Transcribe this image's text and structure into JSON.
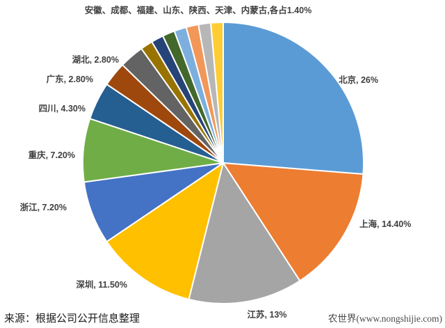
{
  "chart_data": {
    "type": "pie",
    "title": "",
    "annotation": "安徽、成都、福建、山东、陕西、天津、内蒙古,各占1.40%",
    "annotation_each_value": 1.4,
    "legend": "none",
    "data_labels": "outside",
    "start_angle_deg": 0,
    "direction": "clockwise",
    "border_color": "#ffffff",
    "slices": [
      {
        "name": "北京",
        "value": 26.0,
        "label": "北京, 26%",
        "color": "#5B9BD5"
      },
      {
        "name": "上海",
        "value": 14.4,
        "label": "上海, 14.40%",
        "color": "#ED7D31"
      },
      {
        "name": "江苏",
        "value": 13.0,
        "label": "江苏, 13%",
        "color": "#A5A5A5"
      },
      {
        "name": "深圳",
        "value": 11.5,
        "label": "深圳, 11.50%",
        "color": "#FFC000"
      },
      {
        "name": "浙江",
        "value": 7.2,
        "label": "浙江, 7.20%",
        "color": "#4472C4"
      },
      {
        "name": "重庆",
        "value": 7.2,
        "label": "重庆, 7.20%",
        "color": "#70AD47"
      },
      {
        "name": "四川",
        "value": 4.3,
        "label": "四川, 4.30%",
        "color": "#255E91"
      },
      {
        "name": "广东",
        "value": 2.8,
        "label": "广东, 2.80%",
        "color": "#9E480E"
      },
      {
        "name": "湖北",
        "value": 2.8,
        "label": "湖北, 2.80%",
        "color": "#636363"
      },
      {
        "name": "安徽",
        "value": 1.4,
        "label": "",
        "color": "#997300"
      },
      {
        "name": "成都",
        "value": 1.4,
        "label": "",
        "color": "#264478"
      },
      {
        "name": "福建",
        "value": 1.4,
        "label": "",
        "color": "#43682B"
      },
      {
        "name": "山东",
        "value": 1.4,
        "label": "",
        "color": "#7CAFDD"
      },
      {
        "name": "陕西",
        "value": 1.4,
        "label": "",
        "color": "#F1975A"
      },
      {
        "name": "天津",
        "value": 1.4,
        "label": "",
        "color": "#B7B7B7"
      },
      {
        "name": "内蒙古",
        "value": 1.4,
        "label": "",
        "color": "#FFCD33"
      }
    ]
  },
  "footer": {
    "source": "来源：根据公司公开信息整理",
    "watermark": "农世界(www.nongshijie.com)"
  }
}
